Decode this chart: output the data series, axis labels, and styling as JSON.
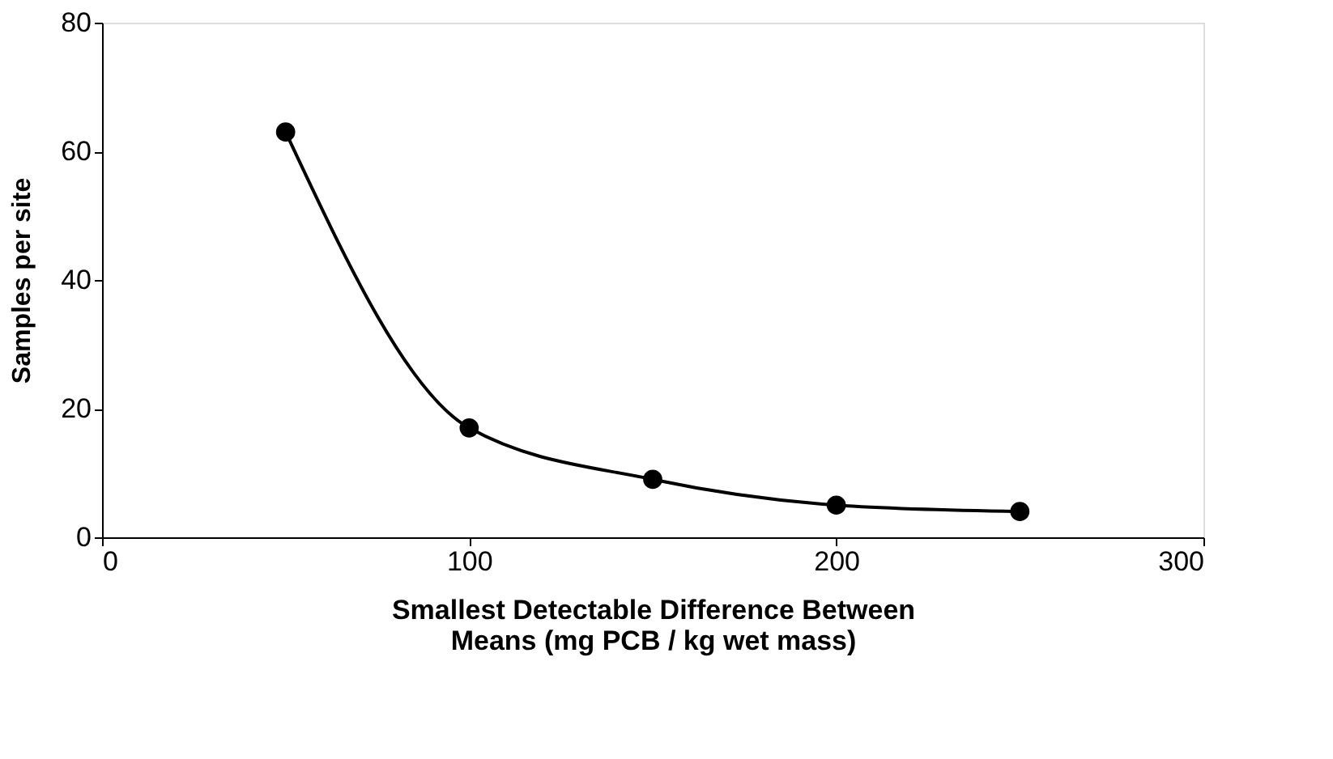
{
  "chart_data": {
    "type": "line",
    "x": [
      50,
      100,
      150,
      200,
      250
    ],
    "series": [
      {
        "color": "#000000",
        "values": [
          63,
          17,
          9,
          5,
          4
        ]
      }
    ],
    "xlabel": "Smallest Detectable Difference Between Means (mg PCB / kg wet mass)",
    "ylabel": "Samples per site",
    "xlim": [
      0,
      300
    ],
    "xticks": [
      0,
      100,
      200,
      300
    ],
    "ylim": [
      0,
      80
    ],
    "yticks": [
      0,
      20,
      40,
      60,
      80
    ],
    "marker": "circle",
    "line_style": "solid",
    "grid": false
  }
}
